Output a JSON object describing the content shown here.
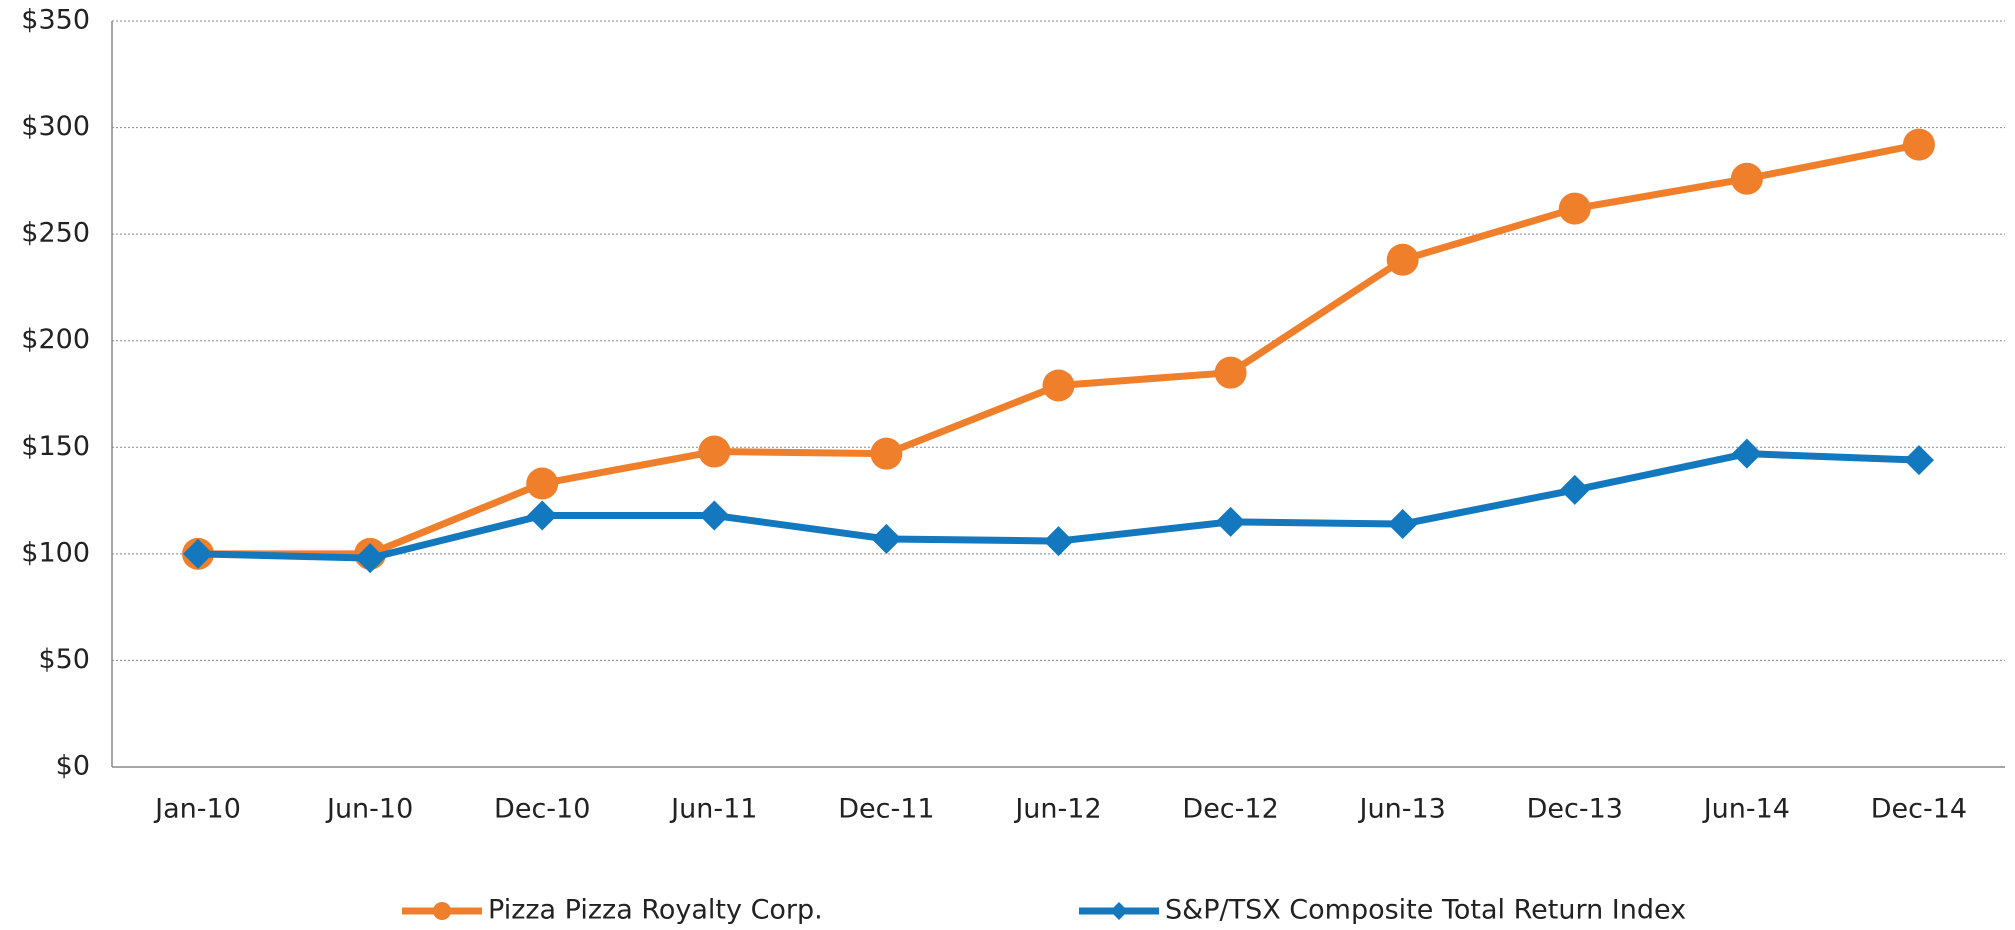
{
  "chart_data": {
    "type": "line",
    "categories": [
      "Jan-10",
      "Jun-10",
      "Dec-10",
      "Jun-11",
      "Dec-11",
      "Jun-12",
      "Dec-12",
      "Jun-13",
      "Dec-13",
      "Jun-14",
      "Dec-14"
    ],
    "series": [
      {
        "name": "Pizza Pizza Royalty Corp.",
        "color": "#f07f2c",
        "marker": "circle",
        "values": [
          100,
          100,
          133,
          148,
          147,
          179,
          185,
          238,
          262,
          276,
          292
        ]
      },
      {
        "name": "S&P/TSX Composite Total Return Index",
        "color": "#1478be",
        "marker": "diamond",
        "values": [
          100,
          98,
          118,
          118,
          107,
          106,
          115,
          114,
          130,
          147,
          144
        ]
      }
    ],
    "ylim": [
      0,
      350
    ],
    "yticks": [
      {
        "value": 0,
        "label": "$0"
      },
      {
        "value": 50,
        "label": "$50"
      },
      {
        "value": 100,
        "label": "$100"
      },
      {
        "value": 150,
        "label": "$150"
      },
      {
        "value": 200,
        "label": "$200"
      },
      {
        "value": 250,
        "label": "$250"
      },
      {
        "value": 300,
        "label": "$300"
      },
      {
        "value": 350,
        "label": "$350"
      }
    ],
    "grid": true,
    "legend": "bottom"
  }
}
